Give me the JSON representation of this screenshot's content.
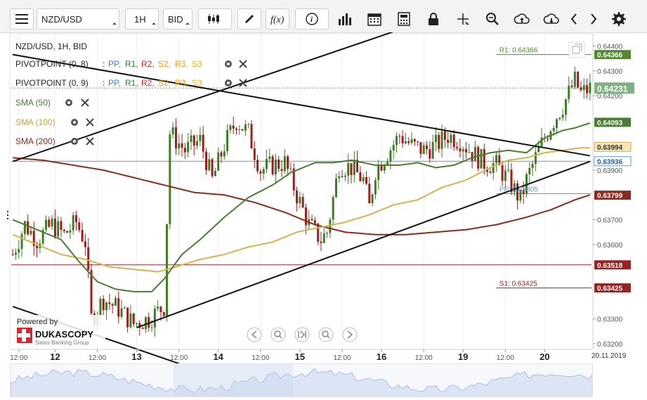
{
  "toolbar": {
    "instrument": "NZD/USD",
    "period": "1H",
    "side": "BID",
    "icons": [
      "menu-icon",
      "candles-icon",
      "pen-icon",
      "function-icon",
      "info-icon",
      "bars-icon",
      "calendar-icon",
      "calculator-icon",
      "lock-icon",
      "crosshair-icon",
      "zoom-icon",
      "upload-icon",
      "download-icon",
      "prev-icon",
      "next-icon",
      "gear-icon"
    ]
  },
  "legend": {
    "header": "NZD/USD, 1H, BID",
    "pivot1": {
      "name": "PIVOTPOINT (0, 8)",
      "sep": ":",
      "labels": [
        "PP,",
        "R1,",
        "R2,",
        "S2,",
        "R3,",
        "S3"
      ]
    },
    "pivot2": {
      "name": "PIVOTPOINT (0, 9)",
      "sep": ":",
      "labels": [
        "PP,",
        "R1,",
        "R2,",
        "S2,",
        "R3,",
        "S3"
      ]
    },
    "sma50": "SMA (50)",
    "sma100": "SMA (100)",
    "sma200": "SMA (200)"
  },
  "colors": {
    "bull": "#3d7f25",
    "bear": "#a11d1d",
    "sma50": "#4a7d32",
    "sma100": "#d7b24c",
    "sma200": "#8c2a1e",
    "pp": "#5d9ad6",
    "r1": "#4f8a2e",
    "s1": "#9b2222",
    "trend": "#111111",
    "current": "#74a57d"
  },
  "branding": {
    "powered_by": "Powered by",
    "brand": "DUKASCOPY",
    "tagline": "Swiss Banking Group"
  },
  "chart_data": {
    "type": "candlestick",
    "instrument": "NZD/USD",
    "timeframe": "1H",
    "x_tick_labels": [
      "12:00",
      "12",
      "12:00",
      "13",
      "12:00",
      "14",
      "12:00",
      "15",
      "12:00",
      "16",
      "12:00",
      "19",
      "12:00",
      "20"
    ],
    "date_label": "20.11.2019",
    "ylim": [
      0.6318,
      0.6445
    ],
    "y_ticks": [
      "0.64400",
      "0.64300",
      "0.64200",
      "0.63900",
      "0.63700",
      "0.63600",
      "0.63300",
      "0.63200"
    ],
    "price_badges": [
      {
        "value": "0.64366",
        "kind": "r1"
      },
      {
        "value": "0.64231",
        "kind": "current"
      },
      {
        "value": "0.64093",
        "kind": "sma50"
      },
      {
        "value": "0.63994",
        "kind": "sma100"
      },
      {
        "value": "0.63936",
        "kind": "hline"
      },
      {
        "value": "0.63799",
        "kind": "sma200"
      },
      {
        "value": "0.63518",
        "kind": "s1old"
      },
      {
        "value": "0.63425",
        "kind": "s1"
      }
    ],
    "pivot_labels": [
      {
        "text": "R1: 0.64366",
        "kind": "r1"
      },
      {
        "text": "PP: 0.63805",
        "kind": "pp"
      },
      {
        "text": "S1: 0.63425",
        "kind": "s1"
      }
    ],
    "close_path": [
      [
        0,
        0.6356
      ],
      [
        4,
        0.6368
      ],
      [
        8,
        0.6362
      ],
      [
        13,
        0.6368
      ],
      [
        17,
        0.6364
      ],
      [
        21,
        0.6369
      ],
      [
        24,
        0.6361
      ],
      [
        26,
        0.633
      ],
      [
        30,
        0.6338
      ],
      [
        35,
        0.6334
      ],
      [
        40,
        0.6328
      ],
      [
        45,
        0.633
      ],
      [
        50,
        0.6335
      ],
      [
        52,
        0.6405
      ],
      [
        57,
        0.6398
      ],
      [
        62,
        0.6402
      ],
      [
        66,
        0.6386
      ],
      [
        70,
        0.64
      ],
      [
        74,
        0.641
      ],
      [
        78,
        0.6405
      ],
      [
        82,
        0.639
      ],
      [
        86,
        0.6392
      ],
      [
        90,
        0.6393
      ],
      [
        94,
        0.638
      ],
      [
        98,
        0.6368
      ],
      [
        102,
        0.6362
      ],
      [
        104,
        0.6365
      ],
      [
        108,
        0.6392
      ],
      [
        112,
        0.6391
      ],
      [
        116,
        0.6386
      ],
      [
        118,
        0.6375
      ],
      [
        120,
        0.639
      ],
      [
        124,
        0.6397
      ],
      [
        128,
        0.6404
      ],
      [
        132,
        0.64
      ],
      [
        136,
        0.6398
      ],
      [
        140,
        0.64
      ],
      [
        144,
        0.6404
      ],
      [
        148,
        0.6402
      ],
      [
        152,
        0.6397
      ],
      [
        156,
        0.6393
      ],
      [
        160,
        0.6392
      ],
      [
        164,
        0.6386
      ],
      [
        168,
        0.6378
      ],
      [
        170,
        0.6386
      ],
      [
        174,
        0.6398
      ],
      [
        178,
        0.6408
      ],
      [
        182,
        0.6416
      ],
      [
        186,
        0.6426
      ],
      [
        188,
        0.6421
      ],
      [
        191,
        0.6423
      ]
    ],
    "sma50_path": [
      [
        0,
        0.637
      ],
      [
        8,
        0.6366
      ],
      [
        16,
        0.6362
      ],
      [
        22,
        0.6353
      ],
      [
        28,
        0.6345
      ],
      [
        34,
        0.6342
      ],
      [
        40,
        0.6341
      ],
      [
        46,
        0.6341
      ],
      [
        50,
        0.6346
      ],
      [
        56,
        0.6356
      ],
      [
        62,
        0.6362
      ],
      [
        70,
        0.6371
      ],
      [
        78,
        0.6379
      ],
      [
        86,
        0.6384
      ],
      [
        92,
        0.6389
      ],
      [
        100,
        0.6393
      ],
      [
        106,
        0.6393
      ],
      [
        112,
        0.6394
      ],
      [
        120,
        0.6392
      ],
      [
        128,
        0.6392
      ],
      [
        134,
        0.6393
      ],
      [
        140,
        0.6391
      ],
      [
        146,
        0.6392
      ],
      [
        152,
        0.6395
      ],
      [
        158,
        0.6397
      ],
      [
        164,
        0.6398
      ],
      [
        170,
        0.6397
      ],
      [
        176,
        0.6403
      ],
      [
        182,
        0.6406
      ],
      [
        186,
        0.6407
      ],
      [
        191,
        0.6409
      ]
    ],
    "sma100_path": [
      [
        0,
        0.6364
      ],
      [
        8,
        0.636
      ],
      [
        16,
        0.6356
      ],
      [
        24,
        0.6354
      ],
      [
        32,
        0.6351
      ],
      [
        40,
        0.635
      ],
      [
        48,
        0.6349
      ],
      [
        54,
        0.6351
      ],
      [
        62,
        0.6354
      ],
      [
        70,
        0.6356
      ],
      [
        78,
        0.6359
      ],
      [
        86,
        0.6361
      ],
      [
        94,
        0.6365
      ],
      [
        102,
        0.6367
      ],
      [
        110,
        0.6369
      ],
      [
        118,
        0.6372
      ],
      [
        126,
        0.6376
      ],
      [
        134,
        0.6378
      ],
      [
        142,
        0.6383
      ],
      [
        150,
        0.6386
      ],
      [
        158,
        0.6391
      ],
      [
        164,
        0.6394
      ],
      [
        170,
        0.6395
      ],
      [
        176,
        0.6397
      ],
      [
        182,
        0.6398
      ],
      [
        188,
        0.6399
      ],
      [
        191,
        0.6399
      ]
    ],
    "sma200_path": [
      [
        0,
        0.6395
      ],
      [
        10,
        0.6394
      ],
      [
        20,
        0.6392
      ],
      [
        30,
        0.639
      ],
      [
        40,
        0.6387
      ],
      [
        50,
        0.6384
      ],
      [
        60,
        0.6381
      ],
      [
        70,
        0.638
      ],
      [
        80,
        0.6377
      ],
      [
        90,
        0.6373
      ],
      [
        100,
        0.6368
      ],
      [
        110,
        0.6365
      ],
      [
        120,
        0.6364
      ],
      [
        130,
        0.6364
      ],
      [
        140,
        0.6365
      ],
      [
        150,
        0.6366
      ],
      [
        160,
        0.6368
      ],
      [
        170,
        0.6371
      ],
      [
        178,
        0.6374
      ],
      [
        186,
        0.6378
      ],
      [
        191,
        0.638
      ]
    ],
    "hline_value": 0.63936,
    "r1_value": 0.64366,
    "pp_value": 0.63805,
    "s1_value": 0.63425,
    "s1_old_value": 0.63518,
    "trendlines": [
      {
        "from": [
          0,
          0.63935
        ],
        "to": [
          130,
          0.64475
        ]
      },
      {
        "from": [
          0,
          0.64366
        ],
        "to": [
          191,
          0.63958
        ]
      },
      {
        "from": [
          41,
          0.63265
        ],
        "to": [
          191,
          0.63935
        ]
      },
      {
        "from": [
          0,
          0.6335
        ],
        "to": [
          55,
          0.6312
        ]
      }
    ],
    "candle_count": 192
  }
}
